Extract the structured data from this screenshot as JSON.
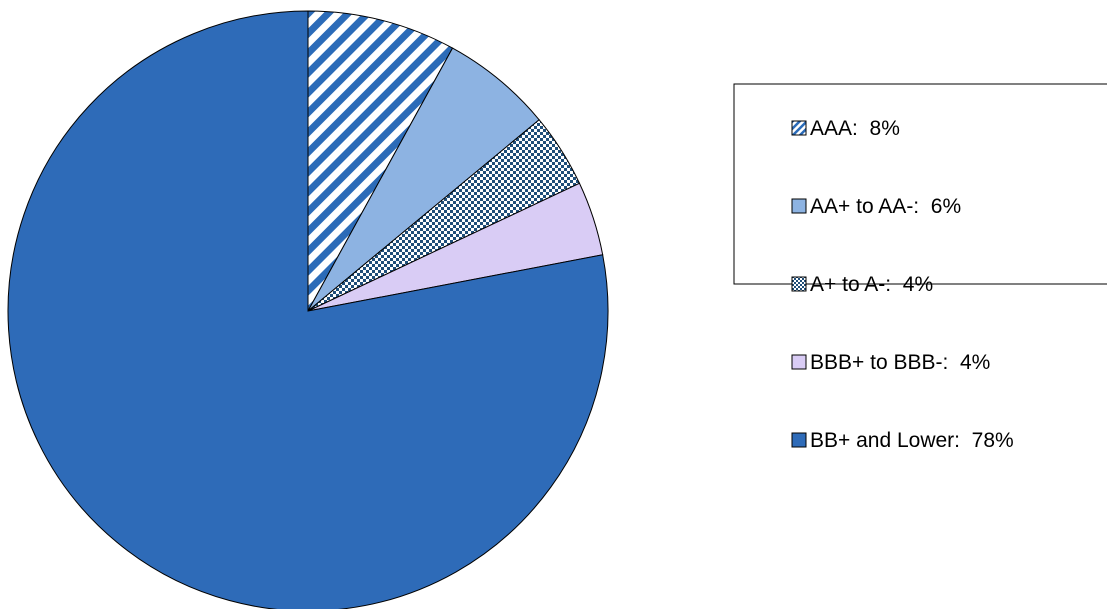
{
  "chart_data": {
    "type": "pie",
    "title": "",
    "legend_position": "right",
    "start_angle_deg": 0,
    "direction": "clockwise",
    "slices": [
      {
        "label": "AAA:  8%",
        "category": "AAA",
        "value": 8,
        "color": "#2B6BB8",
        "pattern": "diagonal-stripes"
      },
      {
        "label": "AA+ to AA-:  6%",
        "category": "AA+ to AA-",
        "value": 6,
        "color": "#8DB3E2",
        "pattern": "solid"
      },
      {
        "label": "A+ to A-:  4%",
        "category": "A+ to A-",
        "value": 4,
        "color": "#1F4E79",
        "pattern": "checker"
      },
      {
        "label": "BBB+ to BBB-:  4%",
        "category": "BBB+ to BBB-",
        "value": 4,
        "color": "#D9CCF5",
        "pattern": "solid"
      },
      {
        "label": "BB+ and Lower:  78%",
        "category": "BB+ and Lower",
        "value": 78,
        "color": "#2E6BB8",
        "pattern": "solid"
      }
    ]
  }
}
